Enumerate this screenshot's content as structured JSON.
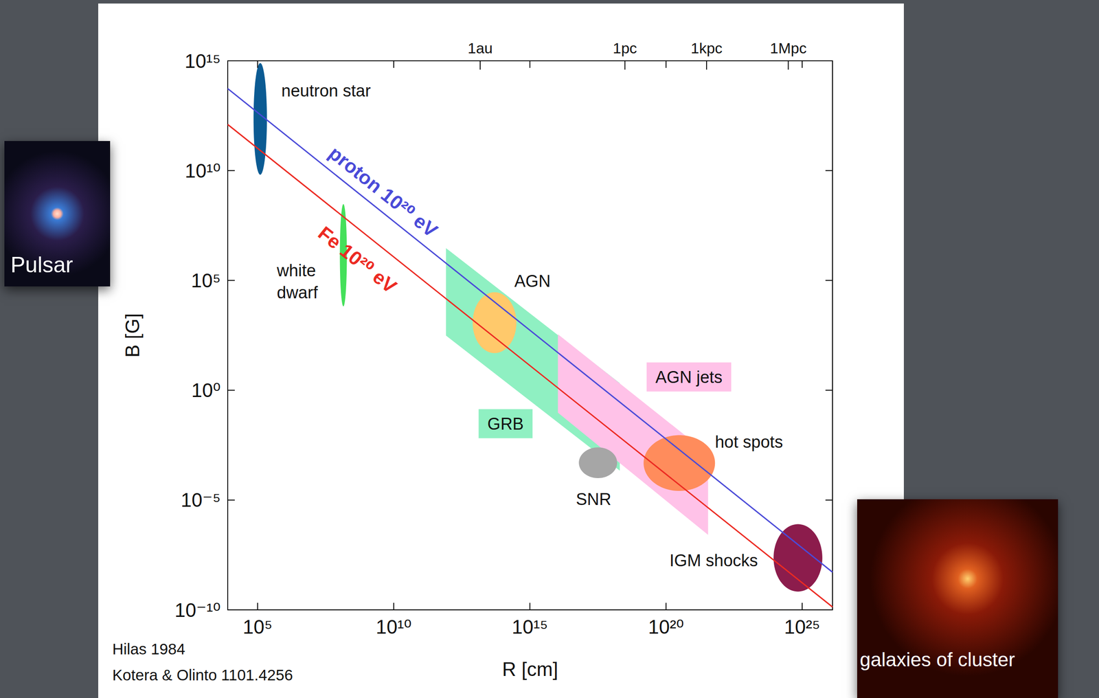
{
  "chart_data": {
    "type": "line",
    "log": true,
    "grid": false,
    "x_label": "R [cm]",
    "y_label": "B [G]",
    "xlim": [
      8000,
      1.3e+26
    ],
    "ylim": [
      1e-10,
      1000000000000000.0
    ],
    "xticks": [
      {
        "value": 100000.0,
        "label": "10⁵"
      },
      {
        "value": 10000000000.0,
        "label": "10¹⁰"
      },
      {
        "value": 1000000000000000.0,
        "label": "10¹⁵"
      },
      {
        "value": 1e+20,
        "label": "10²⁰"
      },
      {
        "value": 1e+25,
        "label": "10²⁵"
      }
    ],
    "x2ticks": [
      {
        "value": 14960000000000.0,
        "label": "1au"
      },
      {
        "value": 3.086e+18,
        "label": "1pc"
      },
      {
        "value": 3.086e+21,
        "label": "1kpc"
      },
      {
        "value": 3.086e+24,
        "label": "1Mpc"
      }
    ],
    "yticks": [
      {
        "value": 1e-10,
        "label": "10⁻¹⁰"
      },
      {
        "value": 1e-05,
        "label": "10⁻⁵"
      },
      {
        "value": 1,
        "label": "10⁰"
      },
      {
        "value": 100000.0,
        "label": "10⁵"
      },
      {
        "value": 10000000000.0,
        "label": "10¹⁰"
      },
      {
        "value": 1000000000000000.0,
        "label": "10¹⁵"
      }
    ],
    "series": [
      {
        "name": "proton 10²⁰ eV",
        "color": "#4a4ad8",
        "x": [
          8000,
          1.3e+26
        ],
        "values": [
          54000000000000.0,
          5.2e-09
        ]
      },
      {
        "name": "Fe 10²⁰ eV",
        "color": "#ec2a22",
        "x": [
          8000,
          1.3e+26
        ],
        "values": [
          1260000000000.0,
          1.35e-10
        ]
      }
    ],
    "regions": [
      {
        "label": "GRB",
        "shape": "polygon",
        "color": "#8ff0c2",
        "x": [
          830000000000.0,
          2e+18,
          2e+18,
          830000000000.0
        ],
        "y": [
          2950000.0,
          2.1,
          0.00022,
          309
        ]
      },
      {
        "label": "AGN jets",
        "shape": "polygon",
        "color": "#ffc2e8",
        "x": [
          1.07e+16,
          3.5e+21,
          3.5e+21,
          1.07e+16
        ],
        "y": [
          355,
          0.0013,
          2.6e-07,
          0.095
        ]
      },
      {
        "label": "SNR",
        "shape": "ellipse",
        "color": "#a6a6a6",
        "x_range": [
          6.3e+16,
          1.6e+18
        ],
        "y_range": [
          0.0001,
          0.0025
        ]
      },
      {
        "label": "hot spots",
        "shape": "ellipse",
        "color": "#ff8c5c",
        "x_range": [
          1.5e+19,
          6.3e+21
        ],
        "y_range": [
          2.6e-05,
          0.009
        ]
      },
      {
        "label": "AGN",
        "shape": "ellipse",
        "color": "#ffc96b",
        "x_range": [
          7900000000000.0,
          320000000000000.0
        ],
        "y_range": [
          49,
          29000
        ]
      },
      {
        "label": "neutron star",
        "shape": "ellipse",
        "color": "#0b5b93",
        "x_range": [
          71000,
          220000
        ],
        "y_range": [
          6500000000.0,
          790000000000000.0
        ]
      },
      {
        "label": "white dwarf",
        "shape": "ellipse",
        "color": "#44e05a",
        "x_range": [
          105000000.0,
          190000000.0
        ],
        "y_range": [
          6600,
          300000000.0
        ]
      },
      {
        "label": "IGM shocks",
        "shape": "ellipse",
        "color": "#8c1c4c",
        "x_range": [
          8.9e+23,
          5.5e+25
        ],
        "y_range": [
          6.8e-10,
          8e-07
        ]
      }
    ],
    "annotations": [
      "Hilas 1984",
      "Kotera & Olinto 1101.4256"
    ]
  },
  "slide": {
    "pictures": [
      {
        "caption": "Pulsar"
      },
      {
        "caption": "galaxies of cluster"
      }
    ]
  }
}
